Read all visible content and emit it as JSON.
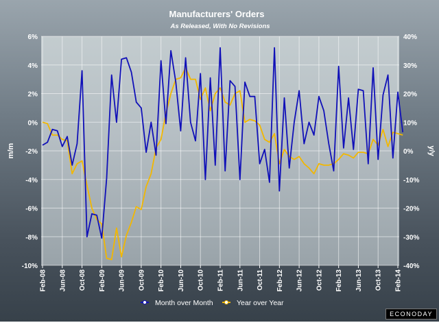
{
  "brand": "ECONODAY",
  "chart_data": {
    "type": "line",
    "title": "Manufacturers' Orders",
    "subtitle": "As Released, With No Revisions",
    "ylabel": "m/m",
    "y2label": "y/y",
    "ylim": [
      -10,
      6
    ],
    "y2lim": [
      -40,
      40
    ],
    "yticks": [
      "6%",
      "4%",
      "2%",
      "0%",
      "-2%",
      "-4%",
      "-6%",
      "-8%",
      "-10%"
    ],
    "y2ticks": [
      "40%",
      "30%",
      "20%",
      "10%",
      "0%",
      "-10%",
      "-20%",
      "-30%",
      "-40%"
    ],
    "x_tick_labels": [
      "Feb-08",
      "Jun-08",
      "Oct-08",
      "Feb-09",
      "Jun-09",
      "Oct-09",
      "Feb-10",
      "Jun-10",
      "Oct-10",
      "Feb-11",
      "Jun-11",
      "Oct-11",
      "Feb-12",
      "Jun-12",
      "Oct-12",
      "Feb-13",
      "Jun-13",
      "Oct-13",
      "Feb-14"
    ],
    "x_tick_months": [
      0,
      4,
      8,
      12,
      16,
      20,
      24,
      28,
      32,
      36,
      40,
      44,
      48,
      52,
      56,
      60,
      64,
      68,
      72
    ],
    "x_range": [
      0,
      72
    ],
    "legend_position": "bottom",
    "series": [
      {
        "name": "Month over Month",
        "axis": "left",
        "color": "#1010b8",
        "values": [
          -1.6,
          -1.4,
          -0.5,
          -0.6,
          -1.7,
          -1.0,
          -3.0,
          -1.5,
          3.6,
          -8.0,
          -6.4,
          -6.5,
          -8.1,
          -3.9,
          3.3,
          0.0,
          4.4,
          4.5,
          3.5,
          1.4,
          1.0,
          -2.1,
          0.0,
          -2.3,
          4.3,
          -0.1,
          5.0,
          2.8,
          -0.6,
          4.5,
          0.0,
          -1.3,
          3.4,
          -4.0,
          3.1,
          -3.0,
          5.2,
          -3.4,
          2.9,
          2.5,
          -4.0,
          2.8,
          1.8,
          1.8,
          -2.9,
          -1.9,
          -4.2,
          5.2,
          -4.8,
          1.7,
          -3.2,
          0.0,
          2.2,
          -1.5,
          0.0,
          -0.9,
          1.8,
          0.8,
          -1.5,
          -3.4,
          3.9,
          -1.8,
          1.7,
          -1.9,
          2.3,
          2.2,
          -2.9,
          3.8,
          -2.6,
          1.9,
          3.3,
          -2.5,
          2.1,
          -0.7
        ]
      },
      {
        "name": "Year over Year",
        "axis": "right",
        "color": "#f2b700",
        "values": [
          10,
          9.5,
          5.5,
          5.5,
          4.0,
          3.5,
          -8.0,
          -4.5,
          -3.5,
          -12.0,
          -20.0,
          -24.0,
          -25.5,
          -37.5,
          -38.0,
          -27.0,
          -37.0,
          -29.5,
          -25.0,
          -19.5,
          -20.5,
          -12.5,
          -8.0,
          1.0,
          4.0,
          13.0,
          20.0,
          25.0,
          25.5,
          29.0,
          25.0,
          25.0,
          18.0,
          22.0,
          14.0,
          20.0,
          22.0,
          17.0,
          16.0,
          20.0,
          21.0,
          10.0,
          11.0,
          10.5,
          9.0,
          4.0,
          3.0,
          6.0,
          -4.5,
          0.5,
          -2.0,
          -3.0,
          -2.0,
          -4.5,
          -6.0,
          -8.0,
          -4.5,
          -5.0,
          -5.0,
          -4.5,
          -3.0,
          -1.0,
          -1.5,
          -2.5,
          -0.5,
          -0.5,
          -1.0,
          4.0,
          2.0,
          7.5,
          1.5,
          6.5,
          6.0,
          5.5
        ]
      }
    ]
  }
}
